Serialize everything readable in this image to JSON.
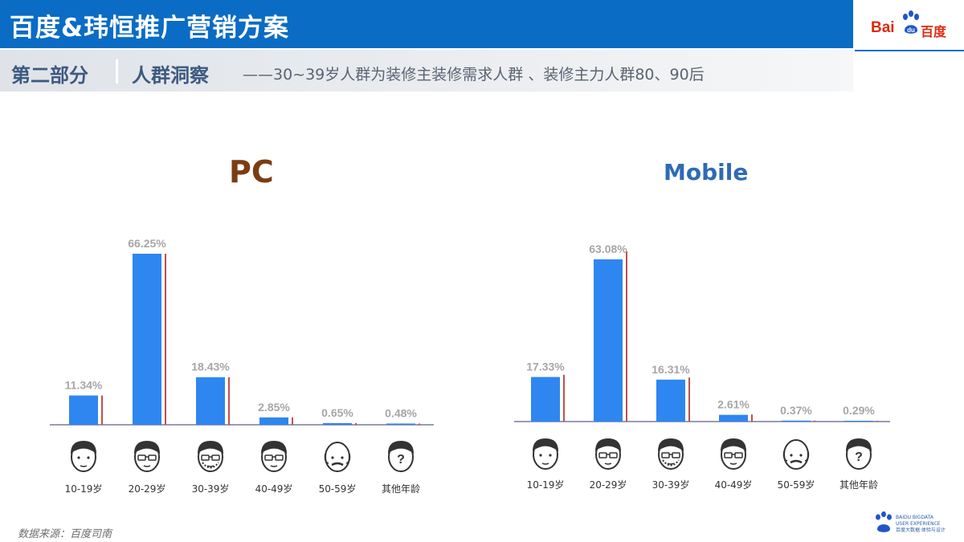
{
  "header": {
    "title": "百度&玮恒推广营销方案",
    "logo_latin": "Bai",
    "logo_inner": "du",
    "logo_cn": "百度"
  },
  "subheader": {
    "section": "第二部分",
    "topic": "人群洞察",
    "note": "——30~39岁人群为装修主装修需求人群 、装修主力人群80、90后"
  },
  "footer": {
    "source": "数据来源：百度司南",
    "brand_lines": "BAIDU BIGDATA\nUSER EXPERIENCE\n百度大数据 体验与设计"
  },
  "colors": {
    "bar": "#2e86f0",
    "accent_line": "#c0504d",
    "baseline": "#9a9ab8",
    "label": "#a6a6a6"
  },
  "icons": [
    "child-face-icon",
    "young-man-glasses-icon",
    "bearded-man-glasses-icon",
    "middle-aged-man-glasses-icon",
    "elderly-bald-man-icon",
    "unknown-person-icon"
  ],
  "chart_data": [
    {
      "type": "bar",
      "title": "PC",
      "categories": [
        "10-19岁",
        "20-29岁",
        "30-39岁",
        "40-49岁",
        "50-59岁",
        "其他年龄"
      ],
      "values": [
        11.34,
        66.25,
        18.43,
        2.85,
        0.65,
        0.48
      ],
      "value_labels": [
        "11.34%",
        "66.25%",
        "18.43%",
        "2.85%",
        "0.65%",
        "0.48%"
      ],
      "ylim": [
        0,
        66.25
      ],
      "grid": false,
      "legend": "none"
    },
    {
      "type": "bar",
      "title": "Mobile",
      "categories": [
        "10-19岁",
        "20-29岁",
        "30-39岁",
        "40-49岁",
        "50-59岁",
        "其他年龄"
      ],
      "values": [
        17.33,
        63.08,
        16.31,
        2.61,
        0.37,
        0.29
      ],
      "value_labels": [
        "17.33%",
        "63.08%",
        "16.31%",
        "2.61%",
        "0.37%",
        "0.29%"
      ],
      "ylim": [
        0,
        63.08
      ],
      "grid": false,
      "legend": "none"
    }
  ]
}
